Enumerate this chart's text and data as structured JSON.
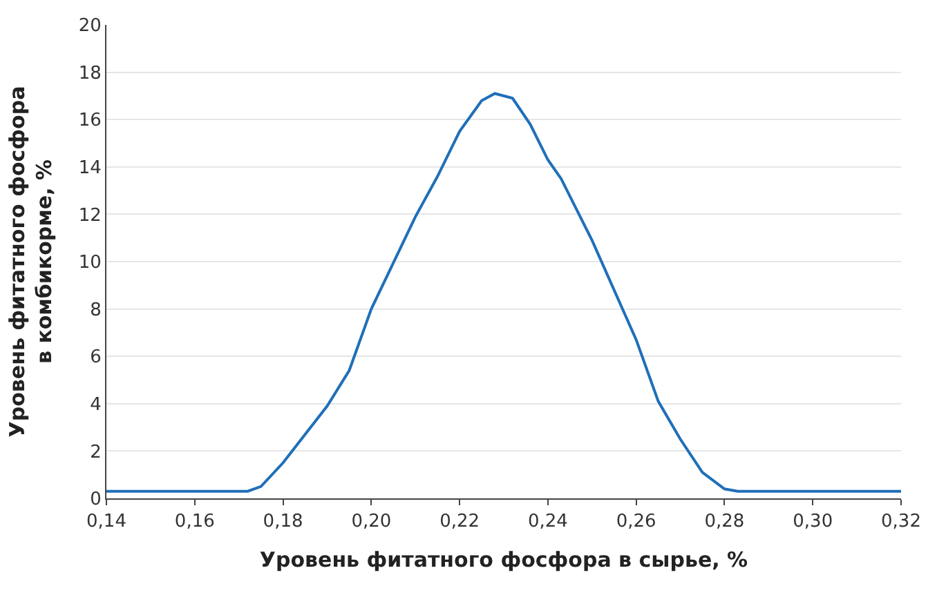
{
  "chart_data": {
    "type": "line",
    "xlabel": "Уровень фитатного фосфора в сырье, %",
    "ylabel": "Уровень фитатного фосфора\nв комбикорме, %",
    "x": [
      0.14,
      0.16,
      0.172,
      0.175,
      0.18,
      0.19,
      0.195,
      0.2,
      0.21,
      0.215,
      0.22,
      0.225,
      0.228,
      0.232,
      0.236,
      0.24,
      0.243,
      0.25,
      0.26,
      0.265,
      0.27,
      0.275,
      0.28,
      0.283,
      0.3,
      0.32
    ],
    "series": [
      {
        "color": "#1f6fb8",
        "values": [
          0.3,
          0.3,
          0.3,
          0.5,
          1.5,
          3.9,
          5.4,
          8,
          11.9,
          13.6,
          15.5,
          16.8,
          17.1,
          16.9,
          15.8,
          14.3,
          13.5,
          10.9,
          6.7,
          4.1,
          2.5,
          1.1,
          0.4,
          0.3,
          0.3,
          0.3
        ]
      }
    ],
    "xlim": [
      0.14,
      0.32
    ],
    "xticks": [
      {
        "value": 0.14,
        "label": "0,14"
      },
      {
        "value": 0.16,
        "label": "0,16"
      },
      {
        "value": 0.18,
        "label": "0,18"
      },
      {
        "value": 0.2,
        "label": "0,20"
      },
      {
        "value": 0.22,
        "label": "0,22"
      },
      {
        "value": 0.24,
        "label": "0,24"
      },
      {
        "value": 0.26,
        "label": "0,26"
      },
      {
        "value": 0.28,
        "label": "0,28"
      },
      {
        "value": 0.3,
        "label": "0,30"
      },
      {
        "value": 0.32,
        "label": "0,32"
      }
    ],
    "ylim": [
      0,
      20
    ],
    "yticks": [
      0,
      2,
      4,
      6,
      8,
      10,
      12,
      14,
      16,
      18,
      20
    ],
    "grid": "y",
    "marker": "none",
    "line_style": "solid"
  }
}
